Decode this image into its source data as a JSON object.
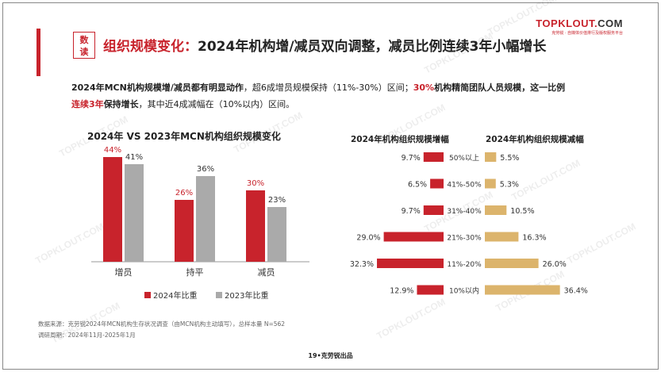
{
  "header": {
    "badge_line1": "数",
    "badge_line2": "读",
    "title_red": "组织规模变化：",
    "title_black": "2024年机构增/减员双向调整，减员比例连续3年小幅增长"
  },
  "logo": {
    "text_red": "TOPKLOUT.",
    "text_dark": "COM",
    "sub": "克劳锐 · 自媒体价值排行及版权服务平台"
  },
  "summary": {
    "part1": "2024年MCN机构规模增/减员都有明显动作",
    "part2": "，超6成增员规模保持（11%-30%）区间；",
    "part3": "30%",
    "part4": "机构精简团队人员规模，这一比例",
    "part5": "连续3年",
    "part6": "保持增长",
    "part7": "，其中近4成减幅在（10%以内）区间。"
  },
  "watermark": "TOPKLOUT.COM",
  "chart_data": [
    {
      "type": "bar",
      "title": "2024年 VS 2023年MCN机构组织规模变化",
      "categories": [
        "增员",
        "持平",
        "减员"
      ],
      "series": [
        {
          "name": "2024年比重",
          "values": [
            44,
            26,
            30
          ],
          "labels": [
            "44%",
            "26%",
            "30%"
          ],
          "color": "#c8232c"
        },
        {
          "name": "2023年比重",
          "values": [
            41,
            36,
            23
          ],
          "labels": [
            "41%",
            "36%",
            "23%"
          ],
          "color": "#aaaaaa"
        }
      ],
      "ylim": [
        0,
        50
      ],
      "legend": "bottom",
      "grid": false
    },
    {
      "type": "bar",
      "orientation": "horizontal",
      "title": "2024年机构组织规模增幅",
      "categories": [
        "50%以上",
        "41%-50%",
        "31%-40%",
        "21%-30%",
        "11%-20%",
        "10%以内"
      ],
      "values": [
        9.7,
        6.5,
        9.7,
        29.0,
        32.3,
        12.9
      ],
      "labels": [
        "9.7%",
        "6.5%",
        "9.7%",
        "29.0%",
        "32.3%",
        "12.9%"
      ],
      "color": "#c8232c",
      "xlim": [
        0,
        40
      ]
    },
    {
      "type": "bar",
      "orientation": "horizontal",
      "title": "2024年机构组织规模减幅",
      "categories": [
        "50%以上",
        "41%-50%",
        "31%-40%",
        "21%-30%",
        "11%-20%",
        "10%以内"
      ],
      "values": [
        5.5,
        5.3,
        10.5,
        16.3,
        26.0,
        36.4
      ],
      "labels": [
        "5.5%",
        "5.3%",
        "10.5%",
        "16.3%",
        "26.0%",
        "36.4%"
      ],
      "color": "#dcb46c",
      "xlim": [
        0,
        40
      ]
    }
  ],
  "source": {
    "line1": "数据来源：克劳锐2024年MCN机构生存状况调查（由MCN机构主动填写），总样本量 N=562",
    "line2": "调研周期：2024年11月-2025年1月"
  },
  "footer": {
    "page": "19•克劳锐出品"
  }
}
